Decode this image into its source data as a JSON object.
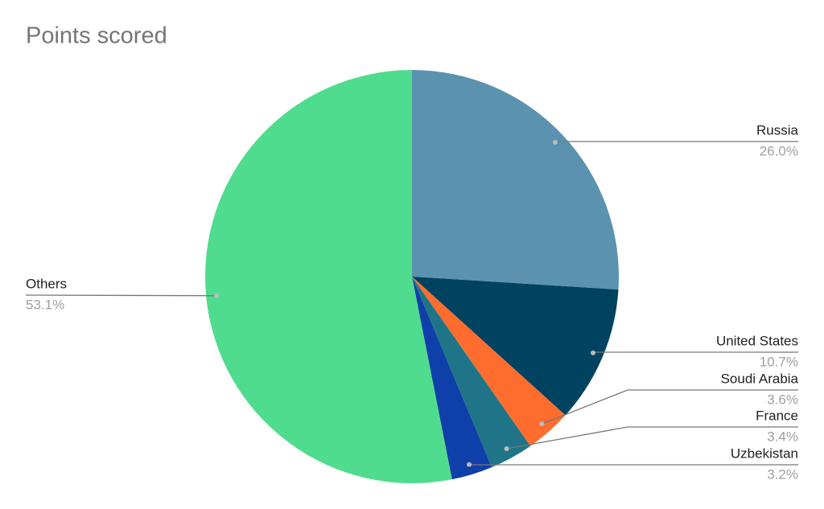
{
  "chart_data": {
    "type": "pie",
    "title": "Points scored",
    "categories": [
      "Russia",
      "United States",
      "Soudi Arabia",
      "France",
      "Uzbekistan",
      "Others"
    ],
    "values": [
      26.0,
      10.7,
      3.6,
      3.4,
      3.2,
      53.1
    ],
    "value_labels": [
      "26.0%",
      "10.7%",
      "3.6%",
      "3.4%",
      "3.2%",
      "53.1%"
    ],
    "colors": [
      "#5b92b0",
      "#004360",
      "#ff6d2e",
      "#1f7587",
      "#0f3fa8",
      "#4fdc8e"
    ]
  }
}
